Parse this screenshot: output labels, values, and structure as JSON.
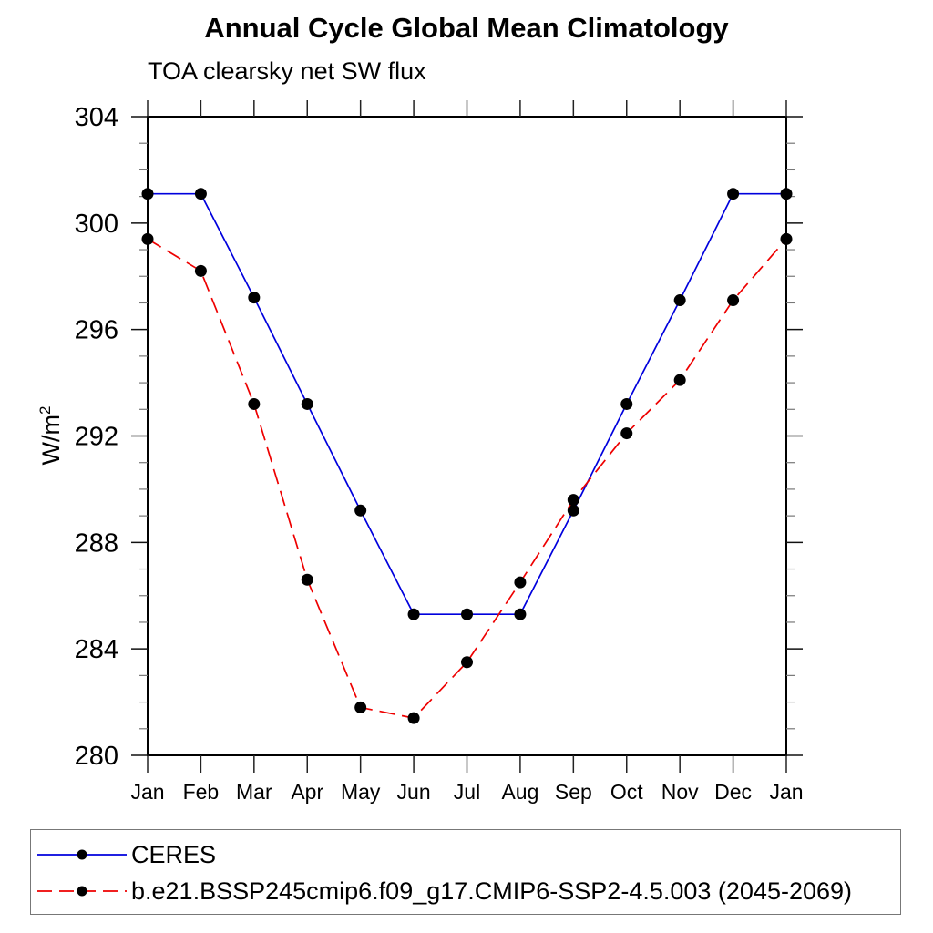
{
  "chart_data": {
    "type": "line",
    "title": "Annual Cycle Global Mean Climatology",
    "subtitle": "TOA clearsky net SW flux",
    "ylabel_base": "W/m",
    "ylabel_sup": "2",
    "x_categories": [
      "Jan",
      "Feb",
      "Mar",
      "Apr",
      "May",
      "Jun",
      "Jul",
      "Aug",
      "Sep",
      "Oct",
      "Nov",
      "Dec",
      "Jan"
    ],
    "ylim": [
      280,
      304
    ],
    "y_major_ticks": [
      280,
      284,
      288,
      292,
      296,
      300,
      304
    ],
    "y_major_step": 4,
    "y_minor_step": 1,
    "grid": false,
    "frame": "box-with-outward-ticks",
    "legend_position": "bottom-left-box",
    "marker_color": "#000000",
    "series": [
      {
        "name": "CERES",
        "color": "#0000dd",
        "style": "solid",
        "marker": "filled-circle",
        "values": [
          301.1,
          301.1,
          297.2,
          293.2,
          289.2,
          285.3,
          285.3,
          285.3,
          289.2,
          293.2,
          297.1,
          301.1,
          301.1
        ]
      },
      {
        "name": "b.e21.BSSP245cmip6.f09_g17.CMIP6-SSP2-4.5.003 (2045-2069)",
        "color": "#ee0000",
        "style": "dashed",
        "marker": "filled-circle",
        "values": [
          299.4,
          298.2,
          293.2,
          286.6,
          281.8,
          281.4,
          283.5,
          286.5,
          289.6,
          292.1,
          294.1,
          297.1,
          299.4
        ]
      }
    ]
  }
}
